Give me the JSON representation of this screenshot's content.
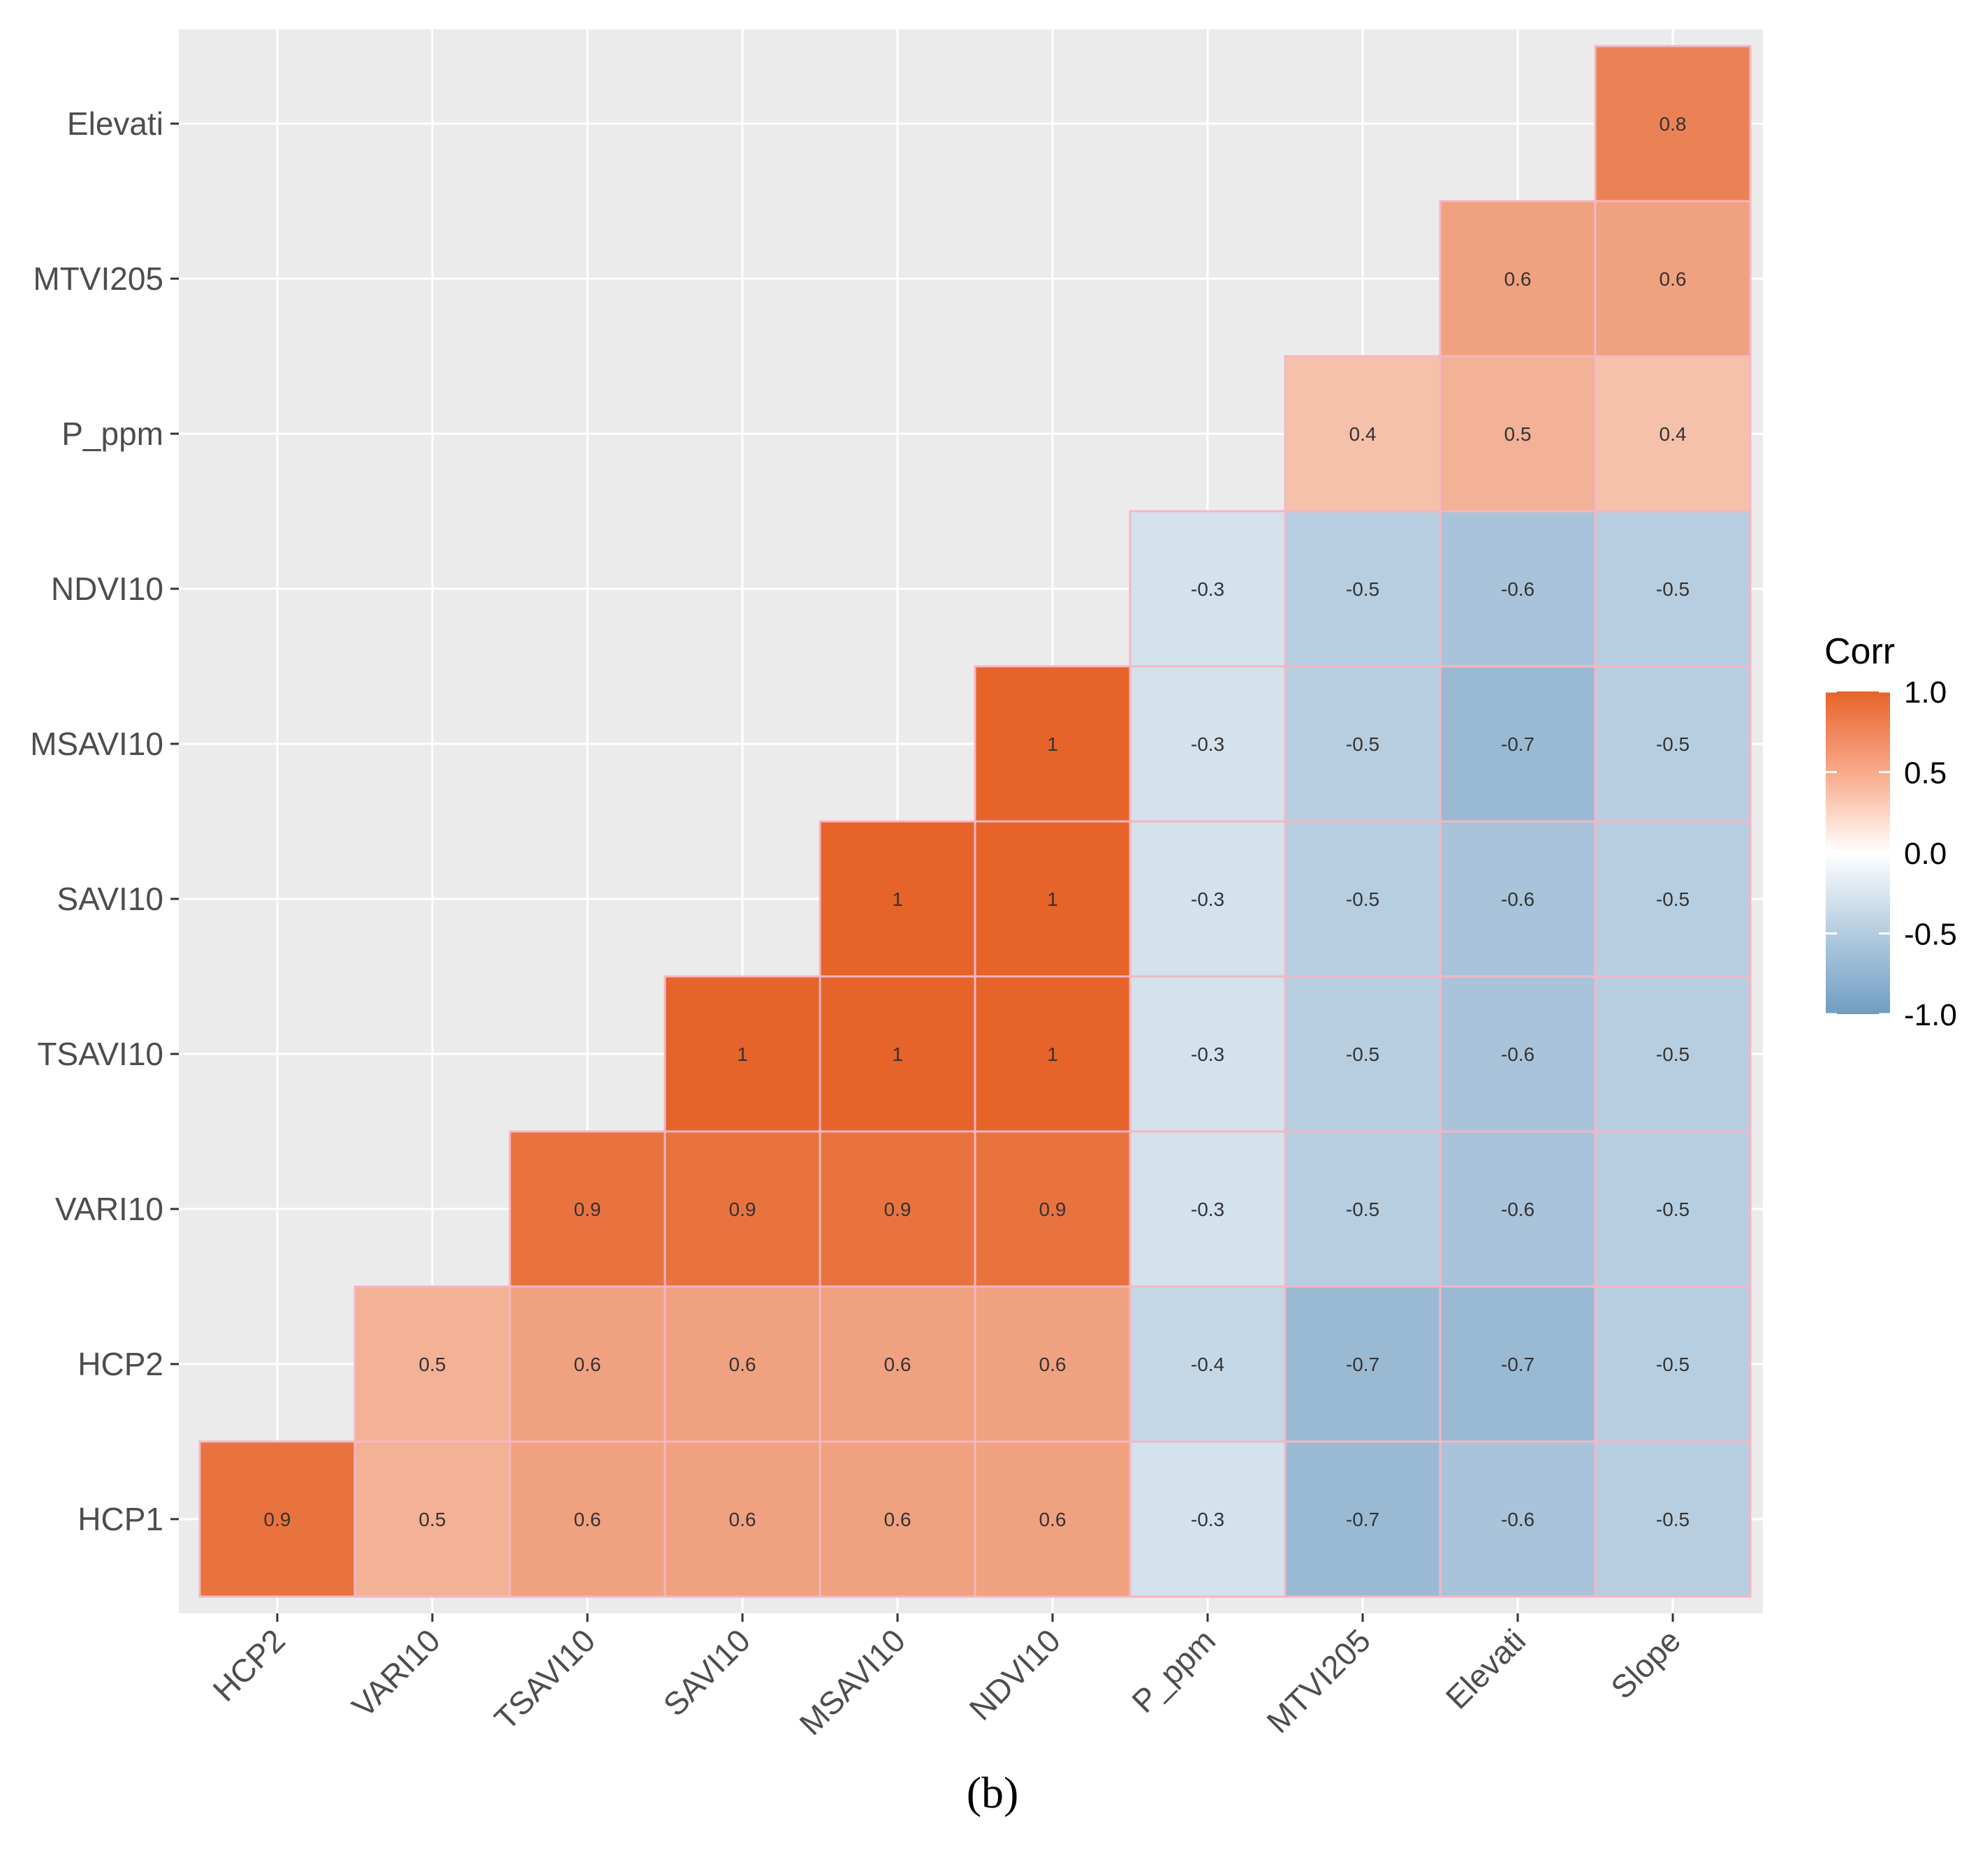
{
  "chart_data": {
    "type": "heatmap",
    "title": "",
    "xlabel": "",
    "ylabel": "",
    "x_categories": [
      "HCP2",
      "VARI10",
      "TSAVI10",
      "SAVI10",
      "MSAVI10",
      "NDVI10",
      "P_ppm",
      "MTVI205",
      "Elevati",
      "Slope"
    ],
    "y_categories": [
      "HCP1",
      "HCP2",
      "VARI10",
      "TSAVI10",
      "SAVI10",
      "MSAVI10",
      "NDVI10",
      "P_ppm",
      "MTVI205",
      "Elevati"
    ],
    "values": [
      [
        0.9,
        0.5,
        0.6,
        0.6,
        0.6,
        0.6,
        -0.3,
        -0.7,
        -0.6,
        -0.5
      ],
      [
        null,
        0.5,
        0.6,
        0.6,
        0.6,
        0.6,
        -0.4,
        -0.7,
        -0.7,
        -0.5
      ],
      [
        null,
        null,
        0.9,
        0.9,
        0.9,
        0.9,
        -0.3,
        -0.5,
        -0.6,
        -0.5
      ],
      [
        null,
        null,
        null,
        1,
        1,
        1,
        -0.3,
        -0.5,
        -0.6,
        -0.5
      ],
      [
        null,
        null,
        null,
        null,
        1,
        1,
        -0.3,
        -0.5,
        -0.6,
        -0.5
      ],
      [
        null,
        null,
        null,
        null,
        null,
        1,
        -0.3,
        -0.5,
        -0.7,
        -0.5
      ],
      [
        null,
        null,
        null,
        null,
        null,
        null,
        -0.3,
        -0.5,
        -0.6,
        -0.5
      ],
      [
        null,
        null,
        null,
        null,
        null,
        null,
        null,
        0.4,
        0.5,
        0.4
      ],
      [
        null,
        null,
        null,
        null,
        null,
        null,
        null,
        null,
        0.6,
        0.6
      ],
      [
        null,
        null,
        null,
        null,
        null,
        null,
        null,
        null,
        null,
        0.8
      ]
    ],
    "legend": {
      "title": "Corr",
      "range": [
        -1.0,
        1.0
      ],
      "ticks": [
        1.0,
        0.5,
        0.0,
        -0.5,
        -1.0
      ],
      "tick_labels": [
        "1.0",
        "0.5",
        "0.0",
        "-0.5",
        "-1.0"
      ],
      "position": "right"
    },
    "colors": {
      "high": "#E6632A",
      "mid": "#FFFFFF",
      "low": "#6F9DC2",
      "panel_background": "#EBEBEB",
      "grid": "#FFFFFF",
      "tile_border": "#F5B6C4",
      "axis_text": "#4D4D4D"
    },
    "grid": true
  },
  "panel_label": "(b)"
}
